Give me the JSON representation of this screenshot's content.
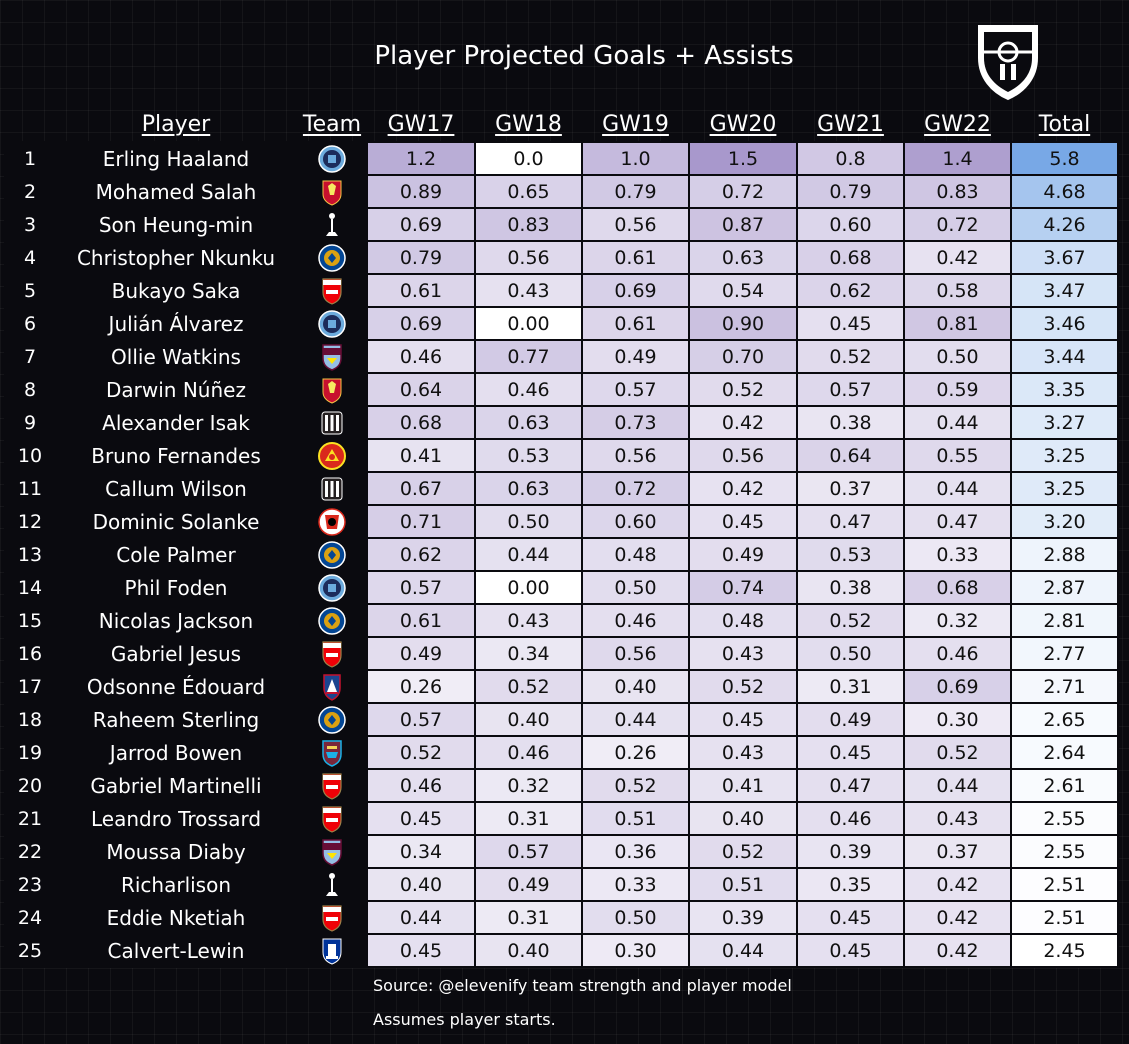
{
  "title": "Player Projected Goals + Assists",
  "source": "Source: @elevenify team strength and player model",
  "note": "Assumes player starts.",
  "colors": {
    "background": "#0a0a0f",
    "heat_low": "#ffffff",
    "heat_high": "#a898cc",
    "total_low": "#ffffff",
    "total_high": "#78a8e6"
  },
  "chart_data": {
    "type": "table",
    "columns": [
      "Player",
      "Team",
      "GW17",
      "GW18",
      "GW19",
      "GW20",
      "GW21",
      "GW22",
      "Total"
    ],
    "rows": [
      {
        "rank": "1",
        "player": "Erling Haaland",
        "team": "mancity-badge",
        "values": [
          "1.2",
          "0.0",
          "1.0",
          "1.5",
          "0.8",
          "1.4"
        ],
        "total": "5.8"
      },
      {
        "rank": "2",
        "player": "Mohamed Salah",
        "team": "liverpool-badge",
        "values": [
          "0.89",
          "0.65",
          "0.79",
          "0.72",
          "0.79",
          "0.83"
        ],
        "total": "4.68"
      },
      {
        "rank": "3",
        "player": "Son Heung-min",
        "team": "tottenham-badge",
        "values": [
          "0.69",
          "0.83",
          "0.56",
          "0.87",
          "0.60",
          "0.72"
        ],
        "total": "4.26"
      },
      {
        "rank": "4",
        "player": "Christopher Nkunku",
        "team": "chelsea-badge",
        "values": [
          "0.79",
          "0.56",
          "0.61",
          "0.63",
          "0.68",
          "0.42"
        ],
        "total": "3.67"
      },
      {
        "rank": "5",
        "player": "Bukayo Saka",
        "team": "arsenal-badge",
        "values": [
          "0.61",
          "0.43",
          "0.69",
          "0.54",
          "0.62",
          "0.58"
        ],
        "total": "3.47"
      },
      {
        "rank": "6",
        "player": "Julián Álvarez",
        "team": "mancity-badge",
        "values": [
          "0.69",
          "0.00",
          "0.61",
          "0.90",
          "0.45",
          "0.81"
        ],
        "total": "3.46"
      },
      {
        "rank": "7",
        "player": "Ollie Watkins",
        "team": "astonvilla-badge",
        "values": [
          "0.46",
          "0.77",
          "0.49",
          "0.70",
          "0.52",
          "0.50"
        ],
        "total": "3.44"
      },
      {
        "rank": "8",
        "player": "Darwin Núñez",
        "team": "liverpool-badge",
        "values": [
          "0.64",
          "0.46",
          "0.57",
          "0.52",
          "0.57",
          "0.59"
        ],
        "total": "3.35"
      },
      {
        "rank": "9",
        "player": "Alexander Isak",
        "team": "newcastle-badge",
        "values": [
          "0.68",
          "0.63",
          "0.73",
          "0.42",
          "0.38",
          "0.44"
        ],
        "total": "3.27"
      },
      {
        "rank": "10",
        "player": "Bruno Fernandes",
        "team": "manutd-badge",
        "values": [
          "0.41",
          "0.53",
          "0.56",
          "0.56",
          "0.64",
          "0.55"
        ],
        "total": "3.25"
      },
      {
        "rank": "11",
        "player": "Callum Wilson",
        "team": "newcastle-badge",
        "values": [
          "0.67",
          "0.63",
          "0.72",
          "0.42",
          "0.37",
          "0.44"
        ],
        "total": "3.25"
      },
      {
        "rank": "12",
        "player": "Dominic Solanke",
        "team": "bournemouth-badge",
        "values": [
          "0.71",
          "0.50",
          "0.60",
          "0.45",
          "0.47",
          "0.47"
        ],
        "total": "3.20"
      },
      {
        "rank": "13",
        "player": "Cole Palmer",
        "team": "chelsea-badge",
        "values": [
          "0.62",
          "0.44",
          "0.48",
          "0.49",
          "0.53",
          "0.33"
        ],
        "total": "2.88"
      },
      {
        "rank": "14",
        "player": "Phil Foden",
        "team": "mancity-badge",
        "values": [
          "0.57",
          "0.00",
          "0.50",
          "0.74",
          "0.38",
          "0.68"
        ],
        "total": "2.87"
      },
      {
        "rank": "15",
        "player": "Nicolas Jackson",
        "team": "chelsea-badge",
        "values": [
          "0.61",
          "0.43",
          "0.46",
          "0.48",
          "0.52",
          "0.32"
        ],
        "total": "2.81"
      },
      {
        "rank": "16",
        "player": "Gabriel Jesus",
        "team": "arsenal-badge",
        "values": [
          "0.49",
          "0.34",
          "0.56",
          "0.43",
          "0.50",
          "0.46"
        ],
        "total": "2.77"
      },
      {
        "rank": "17",
        "player": "Odsonne Édouard",
        "team": "crystalpalace-badge",
        "values": [
          "0.26",
          "0.52",
          "0.40",
          "0.52",
          "0.31",
          "0.69"
        ],
        "total": "2.71"
      },
      {
        "rank": "18",
        "player": "Raheem Sterling",
        "team": "chelsea-badge",
        "values": [
          "0.57",
          "0.40",
          "0.44",
          "0.45",
          "0.49",
          "0.30"
        ],
        "total": "2.65"
      },
      {
        "rank": "19",
        "player": "Jarrod Bowen",
        "team": "westham-badge",
        "values": [
          "0.52",
          "0.46",
          "0.26",
          "0.43",
          "0.45",
          "0.52"
        ],
        "total": "2.64"
      },
      {
        "rank": "20",
        "player": "Gabriel Martinelli",
        "team": "arsenal-badge",
        "values": [
          "0.46",
          "0.32",
          "0.52",
          "0.41",
          "0.47",
          "0.44"
        ],
        "total": "2.61"
      },
      {
        "rank": "21",
        "player": "Leandro Trossard",
        "team": "arsenal-badge",
        "values": [
          "0.45",
          "0.31",
          "0.51",
          "0.40",
          "0.46",
          "0.43"
        ],
        "total": "2.55"
      },
      {
        "rank": "22",
        "player": "Moussa Diaby",
        "team": "astonvilla-badge",
        "values": [
          "0.34",
          "0.57",
          "0.36",
          "0.52",
          "0.39",
          "0.37"
        ],
        "total": "2.55"
      },
      {
        "rank": "23",
        "player": "Richarlison",
        "team": "tottenham-badge",
        "values": [
          "0.40",
          "0.49",
          "0.33",
          "0.51",
          "0.35",
          "0.42"
        ],
        "total": "2.51"
      },
      {
        "rank": "24",
        "player": "Eddie Nketiah",
        "team": "arsenal-badge",
        "values": [
          "0.44",
          "0.31",
          "0.50",
          "0.39",
          "0.45",
          "0.42"
        ],
        "total": "2.51"
      },
      {
        "rank": "25",
        "player": "Calvert-Lewin",
        "team": "everton-badge",
        "values": [
          "0.45",
          "0.40",
          "0.30",
          "0.44",
          "0.45",
          "0.42"
        ],
        "total": "2.45"
      }
    ]
  }
}
